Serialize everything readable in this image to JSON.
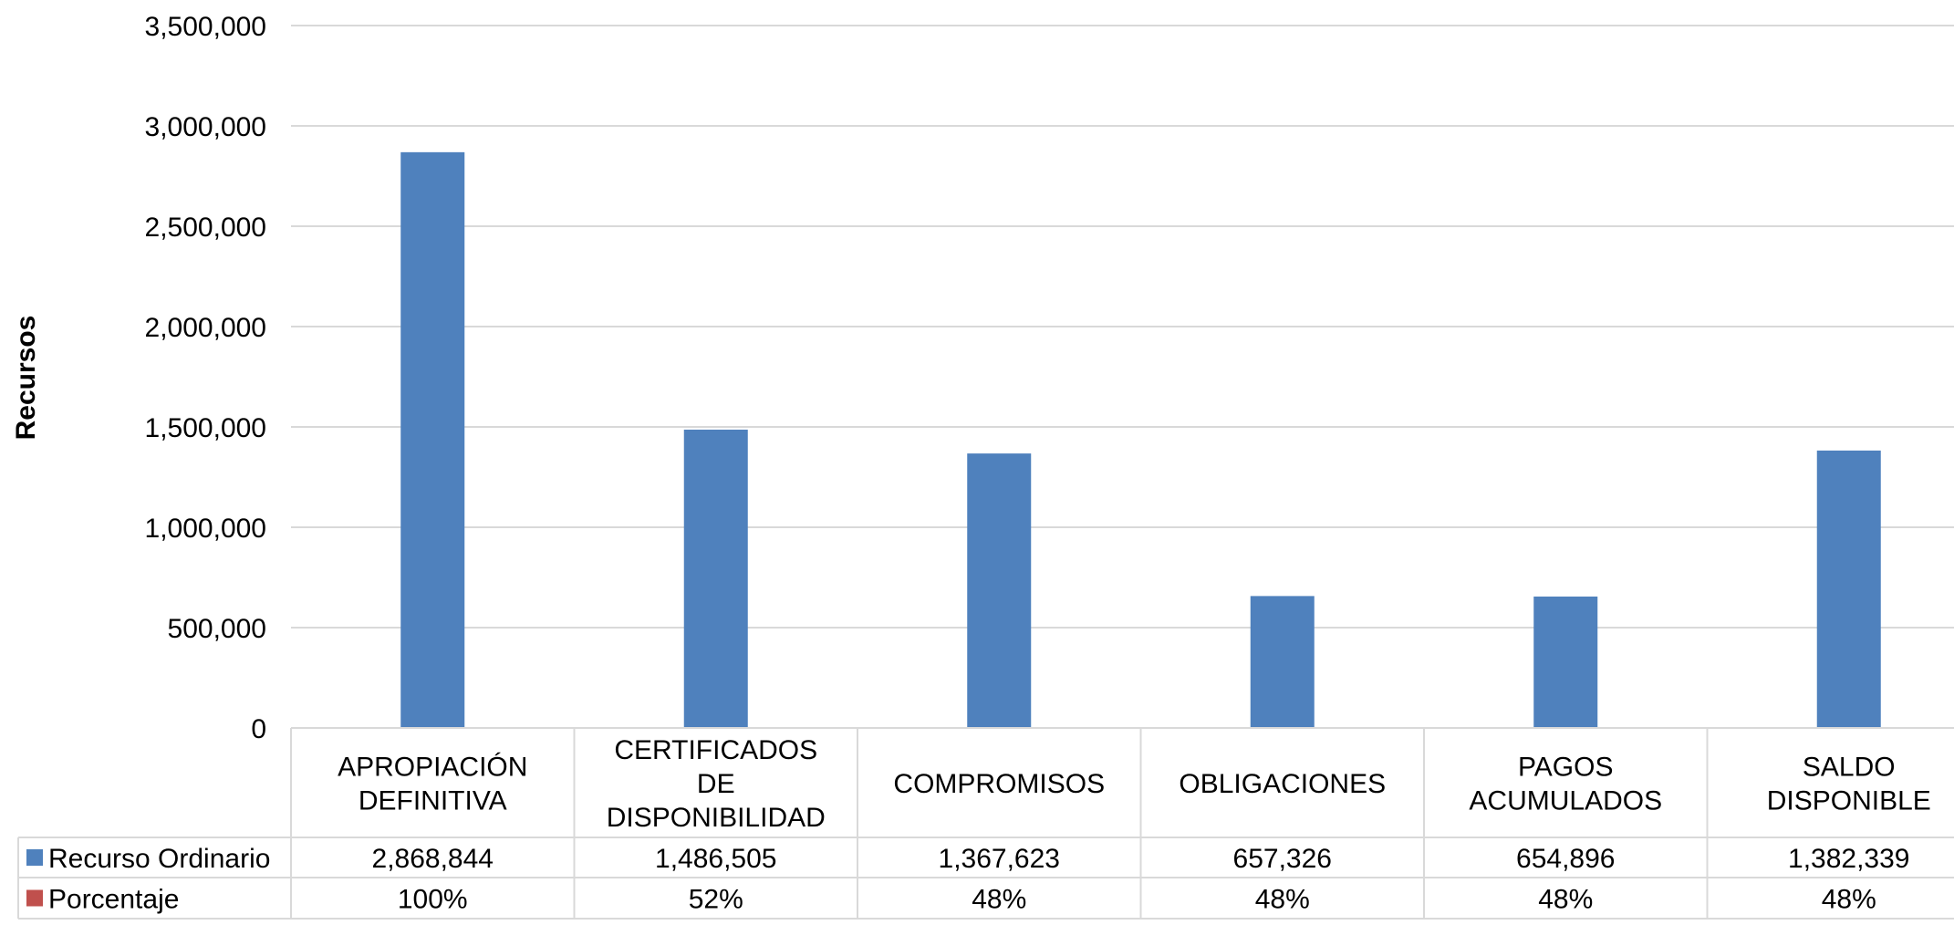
{
  "chart_data": {
    "type": "bar",
    "ylabel": "Recursos",
    "ylim": [
      0,
      3500000
    ],
    "yticks": [
      0,
      500000,
      1000000,
      1500000,
      2000000,
      2500000,
      3000000,
      3500000
    ],
    "ytick_labels": [
      "0",
      "500,000",
      "1,000,000",
      "1,500,000",
      "2,000,000",
      "2,500,000",
      "3,000,000",
      "3,500,000"
    ],
    "grid": true,
    "categories": [
      [
        "APROPIACIÓN",
        "DEFINITIVA"
      ],
      [
        "CERTIFICADOS",
        "DE",
        "DISPONIBILIDAD"
      ],
      [
        "COMPROMISOS"
      ],
      [
        "OBLIGACIONES"
      ],
      [
        "PAGOS",
        "ACUMULADOS"
      ],
      [
        "SALDO",
        "DISPONIBLE"
      ]
    ],
    "series": [
      {
        "name": "Recurso Ordinario",
        "color": "#4F81BD",
        "values": [
          2868844,
          1486505,
          1367623,
          657326,
          654896,
          1382339
        ],
        "labels": [
          "2,868,844",
          "1,486,505",
          "1,367,623",
          "657,326",
          "654,896",
          "1,382,339"
        ]
      },
      {
        "name": "Porcentaje",
        "color": "#C0504D",
        "values": [
          100,
          52,
          48,
          48,
          48,
          48
        ],
        "labels": [
          "100%",
          "52%",
          "48%",
          "48%",
          "48%",
          "48%"
        ]
      }
    ],
    "legend": "data-table"
  }
}
